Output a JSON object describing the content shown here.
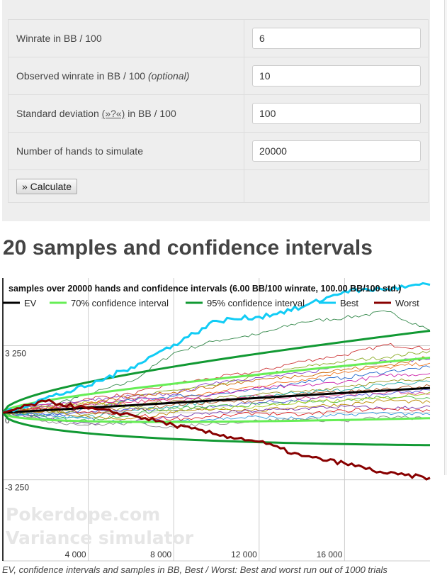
{
  "form": {
    "rows": [
      {
        "label": "Winrate in BB / 100",
        "value": "6"
      },
      {
        "label": "Observed winrate in BB / 100",
        "optional": "(optional)",
        "value": "10"
      },
      {
        "label_pre": "Standard deviation",
        "help": "(»?«)",
        "label_post": "in BB / 100",
        "value": "100"
      },
      {
        "label": "Number of hands to simulate",
        "value": "20000"
      }
    ],
    "calculate_label": "» Calculate"
  },
  "heading": "20 samples and confidence intervals",
  "chart_data": {
    "type": "line",
    "title": "samples over 20000 hands and confidence intervals (6.00 BB/100 winrate, 100.00 BB/100 std.)",
    "xlim": [
      0,
      20000
    ],
    "ylim": [
      -7180,
      6530
    ],
    "xticks": [
      {
        "v": 4000,
        "label": "4 000"
      },
      {
        "v": 8000,
        "label": "8 000"
      },
      {
        "v": 12000,
        "label": "12 000"
      },
      {
        "v": 16000,
        "label": "16 000"
      }
    ],
    "yticks": [
      {
        "v": 3250,
        "label": "3 250"
      },
      {
        "v": 0,
        "label": "0"
      },
      {
        "v": -3250,
        "label": "-3 250"
      }
    ],
    "grid": true,
    "legend": "top",
    "winrate": 6,
    "std": 100,
    "legend_items": [
      {
        "name": "EV",
        "color": "#000000"
      },
      {
        "name": "70% confidence interval",
        "color": "#66ee55"
      },
      {
        "name": "95% confidence interval",
        "color": "#119933"
      },
      {
        "name": "Best",
        "color": "#11ccf5"
      },
      {
        "name": "Worst",
        "color": "#880000"
      }
    ],
    "x": [
      0,
      2000,
      4000,
      6000,
      8000,
      10000,
      12000,
      14000,
      16000,
      18000,
      20000
    ],
    "best": [
      0,
      700,
      1300,
      2200,
      3300,
      4450,
      4650,
      5100,
      5900,
      6000,
      6200
    ],
    "worst": [
      0,
      550,
      200,
      -100,
      -600,
      -1050,
      -1400,
      -2100,
      -2450,
      -2950,
      -3150
    ],
    "samples": [
      {
        "color": "#33884a",
        "values": [
          0,
          300,
          900,
          1500,
          2900,
          3500,
          3800,
          4400,
          4600,
          4900,
          4000
        ]
      },
      {
        "color": "#cc3333",
        "values": [
          0,
          200,
          700,
          900,
          1400,
          1700,
          2000,
          2500,
          2800,
          3300,
          3100
        ]
      },
      {
        "color": "#88aa22",
        "values": [
          0,
          -100,
          300,
          700,
          1100,
          1300,
          1800,
          2200,
          2500,
          2700,
          3000
        ]
      },
      {
        "color": "#8844cc",
        "values": [
          0,
          400,
          600,
          800,
          900,
          1500,
          1700,
          1900,
          2300,
          2500,
          2600
        ]
      },
      {
        "color": "#ee7722",
        "values": [
          0,
          100,
          500,
          400,
          700,
          1000,
          1300,
          1600,
          2000,
          2200,
          2400
        ]
      },
      {
        "color": "#2266cc",
        "values": [
          0,
          -200,
          200,
          600,
          800,
          900,
          1100,
          1500,
          1700,
          2000,
          2200
        ]
      },
      {
        "color": "#cc22aa",
        "values": [
          0,
          300,
          400,
          700,
          600,
          900,
          1200,
          1300,
          1500,
          1800,
          1900
        ]
      },
      {
        "color": "#999922",
        "values": [
          0,
          100,
          -100,
          300,
          600,
          700,
          900,
          1000,
          1300,
          1500,
          1700
        ]
      },
      {
        "color": "#22aaaa",
        "values": [
          0,
          -300,
          -200,
          100,
          300,
          600,
          800,
          1000,
          1100,
          1400,
          1500
        ]
      },
      {
        "color": "#aa5522",
        "values": [
          0,
          200,
          300,
          100,
          400,
          500,
          600,
          900,
          1000,
          1200,
          1300
        ]
      },
      {
        "color": "#5555dd",
        "values": [
          0,
          -100,
          0,
          200,
          100,
          300,
          500,
          600,
          800,
          900,
          1100
        ]
      },
      {
        "color": "#dd4488",
        "values": [
          0,
          400,
          200,
          500,
          700,
          600,
          800,
          700,
          900,
          1000,
          900
        ]
      },
      {
        "color": "#44bb44",
        "values": [
          0,
          -200,
          -400,
          -100,
          200,
          300,
          400,
          500,
          600,
          800,
          700
        ]
      },
      {
        "color": "#bb8800",
        "values": [
          0,
          100,
          -200,
          -300,
          0,
          200,
          100,
          300,
          400,
          600,
          500
        ]
      },
      {
        "color": "#7733aa",
        "values": [
          0,
          -300,
          -500,
          -400,
          -200,
          0,
          100,
          200,
          300,
          200,
          300
        ]
      },
      {
        "color": "#dd2222",
        "values": [
          0,
          200,
          0,
          -100,
          -300,
          -200,
          0,
          -100,
          100,
          200,
          100
        ]
      },
      {
        "color": "#3399dd",
        "values": [
          0,
          -100,
          -300,
          -500,
          -400,
          -300,
          -200,
          -300,
          -100,
          0,
          -100
        ]
      },
      {
        "color": "#aacc22",
        "values": [
          0,
          300,
          500,
          300,
          100,
          200,
          300,
          500,
          600,
          700,
          1000
        ]
      },
      {
        "color": "#888888",
        "values": [
          0,
          -400,
          -600,
          -500,
          -700,
          -500,
          -400,
          -300,
          -400,
          -200,
          -300
        ]
      },
      {
        "color": "#cc6600",
        "values": [
          0,
          100,
          400,
          800,
          1000,
          1300,
          1600,
          1800,
          2100,
          2300,
          2700
        ]
      }
    ],
    "watermark": [
      "Pokerdope.com",
      "Variance simulator"
    ],
    "caption": "EV, confidence intervals and samples in BB, Best / Worst: Best and worst run out of 1000 trials"
  }
}
